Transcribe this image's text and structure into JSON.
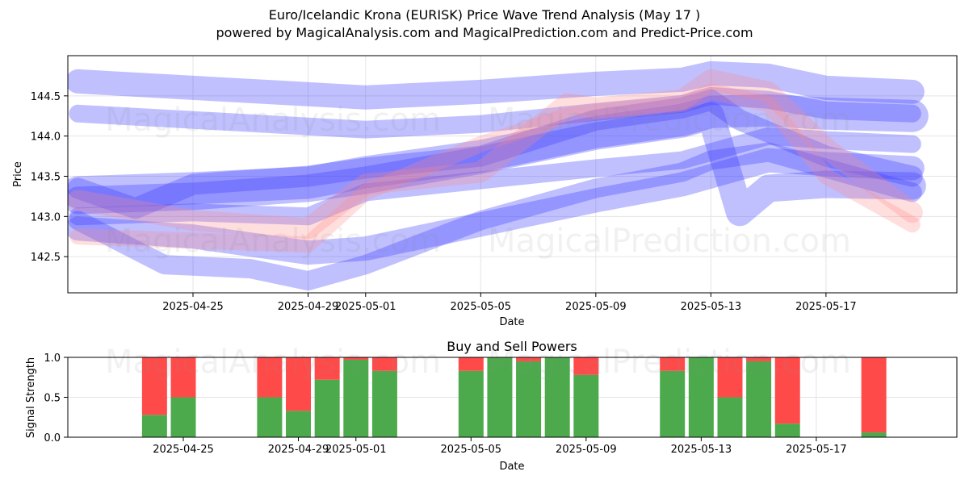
{
  "header": {
    "title": "Euro/Icelandic Krona (EURISK) Price Wave Trend Analysis (May 17 )",
    "subtitle": "powered by MagicalAnalysis.com and MagicalPrediction.com and Predict-Price.com"
  },
  "watermarks": {
    "left": "MagicalAnalysis.com",
    "right": "MagicalPrediction.com"
  },
  "colors": {
    "blue_band": "#3a3aff",
    "red_band": "#ff8a8a",
    "buy": "#4caa4c",
    "sell": "#ff4a4a",
    "grid": "#e4e4e4"
  },
  "chart_data": [
    {
      "type": "area",
      "title": "",
      "xlabel": "Date",
      "ylabel": "Price",
      "xlim": [
        "2025-04-21",
        "2025-05-21"
      ],
      "ylim": [
        142.05,
        145.0
      ],
      "x_ticks": [
        "2025-04-25",
        "2025-04-29",
        "2025-05-01",
        "2025-05-05",
        "2025-05-09",
        "2025-05-13",
        "2025-05-17"
      ],
      "y_ticks": [
        142.5,
        143.0,
        143.5,
        144.0,
        144.5
      ],
      "grid": true,
      "series": [
        {
          "color": "blue",
          "x": [
            "2025-04-21",
            "2025-04-25",
            "2025-04-29",
            "2025-05-01",
            "2025-05-05",
            "2025-05-09",
            "2025-05-12",
            "2025-05-13",
            "2025-05-15",
            "2025-05-17",
            "2025-05-20"
          ],
          "values": [
            144.68,
            144.6,
            144.52,
            144.48,
            144.55,
            144.65,
            144.7,
            144.78,
            144.75,
            144.6,
            144.55
          ]
        },
        {
          "color": "blue",
          "x": [
            "2025-04-21",
            "2025-04-25",
            "2025-04-29",
            "2025-05-01",
            "2025-05-05",
            "2025-05-09",
            "2025-05-12",
            "2025-05-13",
            "2025-05-15",
            "2025-05-17",
            "2025-05-20"
          ],
          "values": [
            144.28,
            144.2,
            144.12,
            144.08,
            144.15,
            144.3,
            144.4,
            144.5,
            144.45,
            144.32,
            144.28
          ]
        },
        {
          "color": "blue",
          "x": [
            "2025-04-21",
            "2025-04-25",
            "2025-04-29",
            "2025-05-01",
            "2025-05-05",
            "2025-05-09",
            "2025-05-12",
            "2025-05-13",
            "2025-05-15",
            "2025-05-17",
            "2025-05-20"
          ],
          "values": [
            143.3,
            143.35,
            143.42,
            143.55,
            143.75,
            144.05,
            144.2,
            144.3,
            144.32,
            144.28,
            144.25
          ]
        },
        {
          "color": "blue",
          "x": [
            "2025-04-21",
            "2025-04-23",
            "2025-04-25",
            "2025-04-29",
            "2025-05-01",
            "2025-05-05",
            "2025-05-09",
            "2025-05-12",
            "2025-05-13",
            "2025-05-14",
            "2025-05-17",
            "2025-05-20"
          ],
          "values": [
            143.35,
            143.1,
            143.4,
            143.5,
            143.6,
            143.75,
            144.2,
            144.35,
            144.45,
            144.2,
            143.75,
            143.5
          ]
        },
        {
          "color": "blue",
          "x": [
            "2025-04-21",
            "2025-04-25",
            "2025-04-29",
            "2025-05-01",
            "2025-05-05",
            "2025-05-09",
            "2025-05-12",
            "2025-05-13",
            "2025-05-14",
            "2025-05-15",
            "2025-05-17",
            "2025-05-20"
          ],
          "values": [
            143.2,
            143.25,
            143.35,
            143.45,
            143.7,
            144.0,
            144.15,
            144.25,
            143.05,
            143.35,
            143.4,
            143.38
          ]
        },
        {
          "color": "blue",
          "x": [
            "2025-04-21",
            "2025-04-25",
            "2025-04-29",
            "2025-05-01",
            "2025-05-05",
            "2025-05-09",
            "2025-05-12",
            "2025-05-13",
            "2025-05-15",
            "2025-05-17",
            "2025-05-20"
          ],
          "values": [
            143.0,
            143.05,
            143.0,
            143.3,
            143.45,
            143.6,
            143.7,
            143.8,
            144.0,
            143.95,
            143.9
          ]
        },
        {
          "color": "blue",
          "x": [
            "2025-04-21",
            "2025-04-25",
            "2025-04-29",
            "2025-05-01",
            "2025-05-05",
            "2025-05-09",
            "2025-05-12",
            "2025-05-13",
            "2025-05-15",
            "2025-05-17",
            "2025-05-20"
          ],
          "values": [
            142.85,
            142.75,
            142.55,
            142.6,
            142.9,
            143.2,
            143.4,
            143.5,
            143.7,
            143.65,
            143.6
          ]
        },
        {
          "color": "blue",
          "x": [
            "2025-04-21",
            "2025-04-24",
            "2025-04-27",
            "2025-04-29",
            "2025-05-01",
            "2025-05-05",
            "2025-05-09",
            "2025-05-12",
            "2025-05-13",
            "2025-05-15",
            "2025-05-17",
            "2025-05-20"
          ],
          "values": [
            142.95,
            142.4,
            142.35,
            142.2,
            142.4,
            142.95,
            143.35,
            143.55,
            143.7,
            143.8,
            143.6,
            143.3
          ]
        },
        {
          "color": "red",
          "x": [
            "2025-04-21",
            "2025-04-25",
            "2025-04-29",
            "2025-05-01",
            "2025-05-05",
            "2025-05-08",
            "2025-05-09",
            "2025-05-12",
            "2025-05-13",
            "2025-05-15",
            "2025-05-17",
            "2025-05-20"
          ],
          "values": [
            143.2,
            142.95,
            142.85,
            143.4,
            143.55,
            144.4,
            144.35,
            144.45,
            144.7,
            144.55,
            143.85,
            143.05
          ]
        },
        {
          "color": "red",
          "x": [
            "2025-04-21",
            "2025-04-25",
            "2025-04-29",
            "2025-05-01",
            "2025-05-05",
            "2025-05-08",
            "2025-05-09",
            "2025-05-12",
            "2025-05-13",
            "2025-05-15",
            "2025-05-17",
            "2025-05-20"
          ],
          "values": [
            142.75,
            142.7,
            142.65,
            143.3,
            143.9,
            144.25,
            144.3,
            144.4,
            144.55,
            144.4,
            143.5,
            142.9
          ]
        }
      ]
    },
    {
      "type": "bar",
      "title": "Buy and Sell Powers",
      "xlabel": "Date",
      "ylabel": "Signal Strength",
      "ylim": [
        0,
        1.0
      ],
      "y_ticks": [
        0.0,
        0.5,
        1.0
      ],
      "x_ticks": [
        "2025-04-25",
        "2025-04-29",
        "2025-05-01",
        "2025-05-05",
        "2025-05-09",
        "2025-05-13",
        "2025-05-17"
      ],
      "grid": true,
      "categories": [
        "2025-04-24",
        "2025-04-25",
        "2025-04-28",
        "2025-04-29",
        "2025-04-30",
        "2025-05-01",
        "2025-05-02",
        "2025-05-05",
        "2025-05-06",
        "2025-05-07",
        "2025-05-08",
        "2025-05-09",
        "2025-05-12",
        "2025-05-13",
        "2025-05-14",
        "2025-05-15",
        "2025-05-16",
        "2025-05-19"
      ],
      "series": [
        {
          "name": "Buy",
          "values": [
            0.28,
            0.5,
            0.5,
            0.33,
            0.72,
            0.97,
            0.83,
            0.83,
            1.0,
            0.95,
            1.0,
            0.78,
            0.83,
            1.0,
            0.5,
            0.95,
            0.17,
            0.06
          ]
        },
        {
          "name": "Sell",
          "values": [
            0.72,
            0.5,
            0.5,
            0.67,
            0.28,
            0.03,
            0.17,
            0.17,
            0.0,
            0.05,
            0.0,
            0.22,
            0.17,
            0.0,
            0.5,
            0.05,
            0.83,
            0.94
          ]
        }
      ]
    }
  ]
}
